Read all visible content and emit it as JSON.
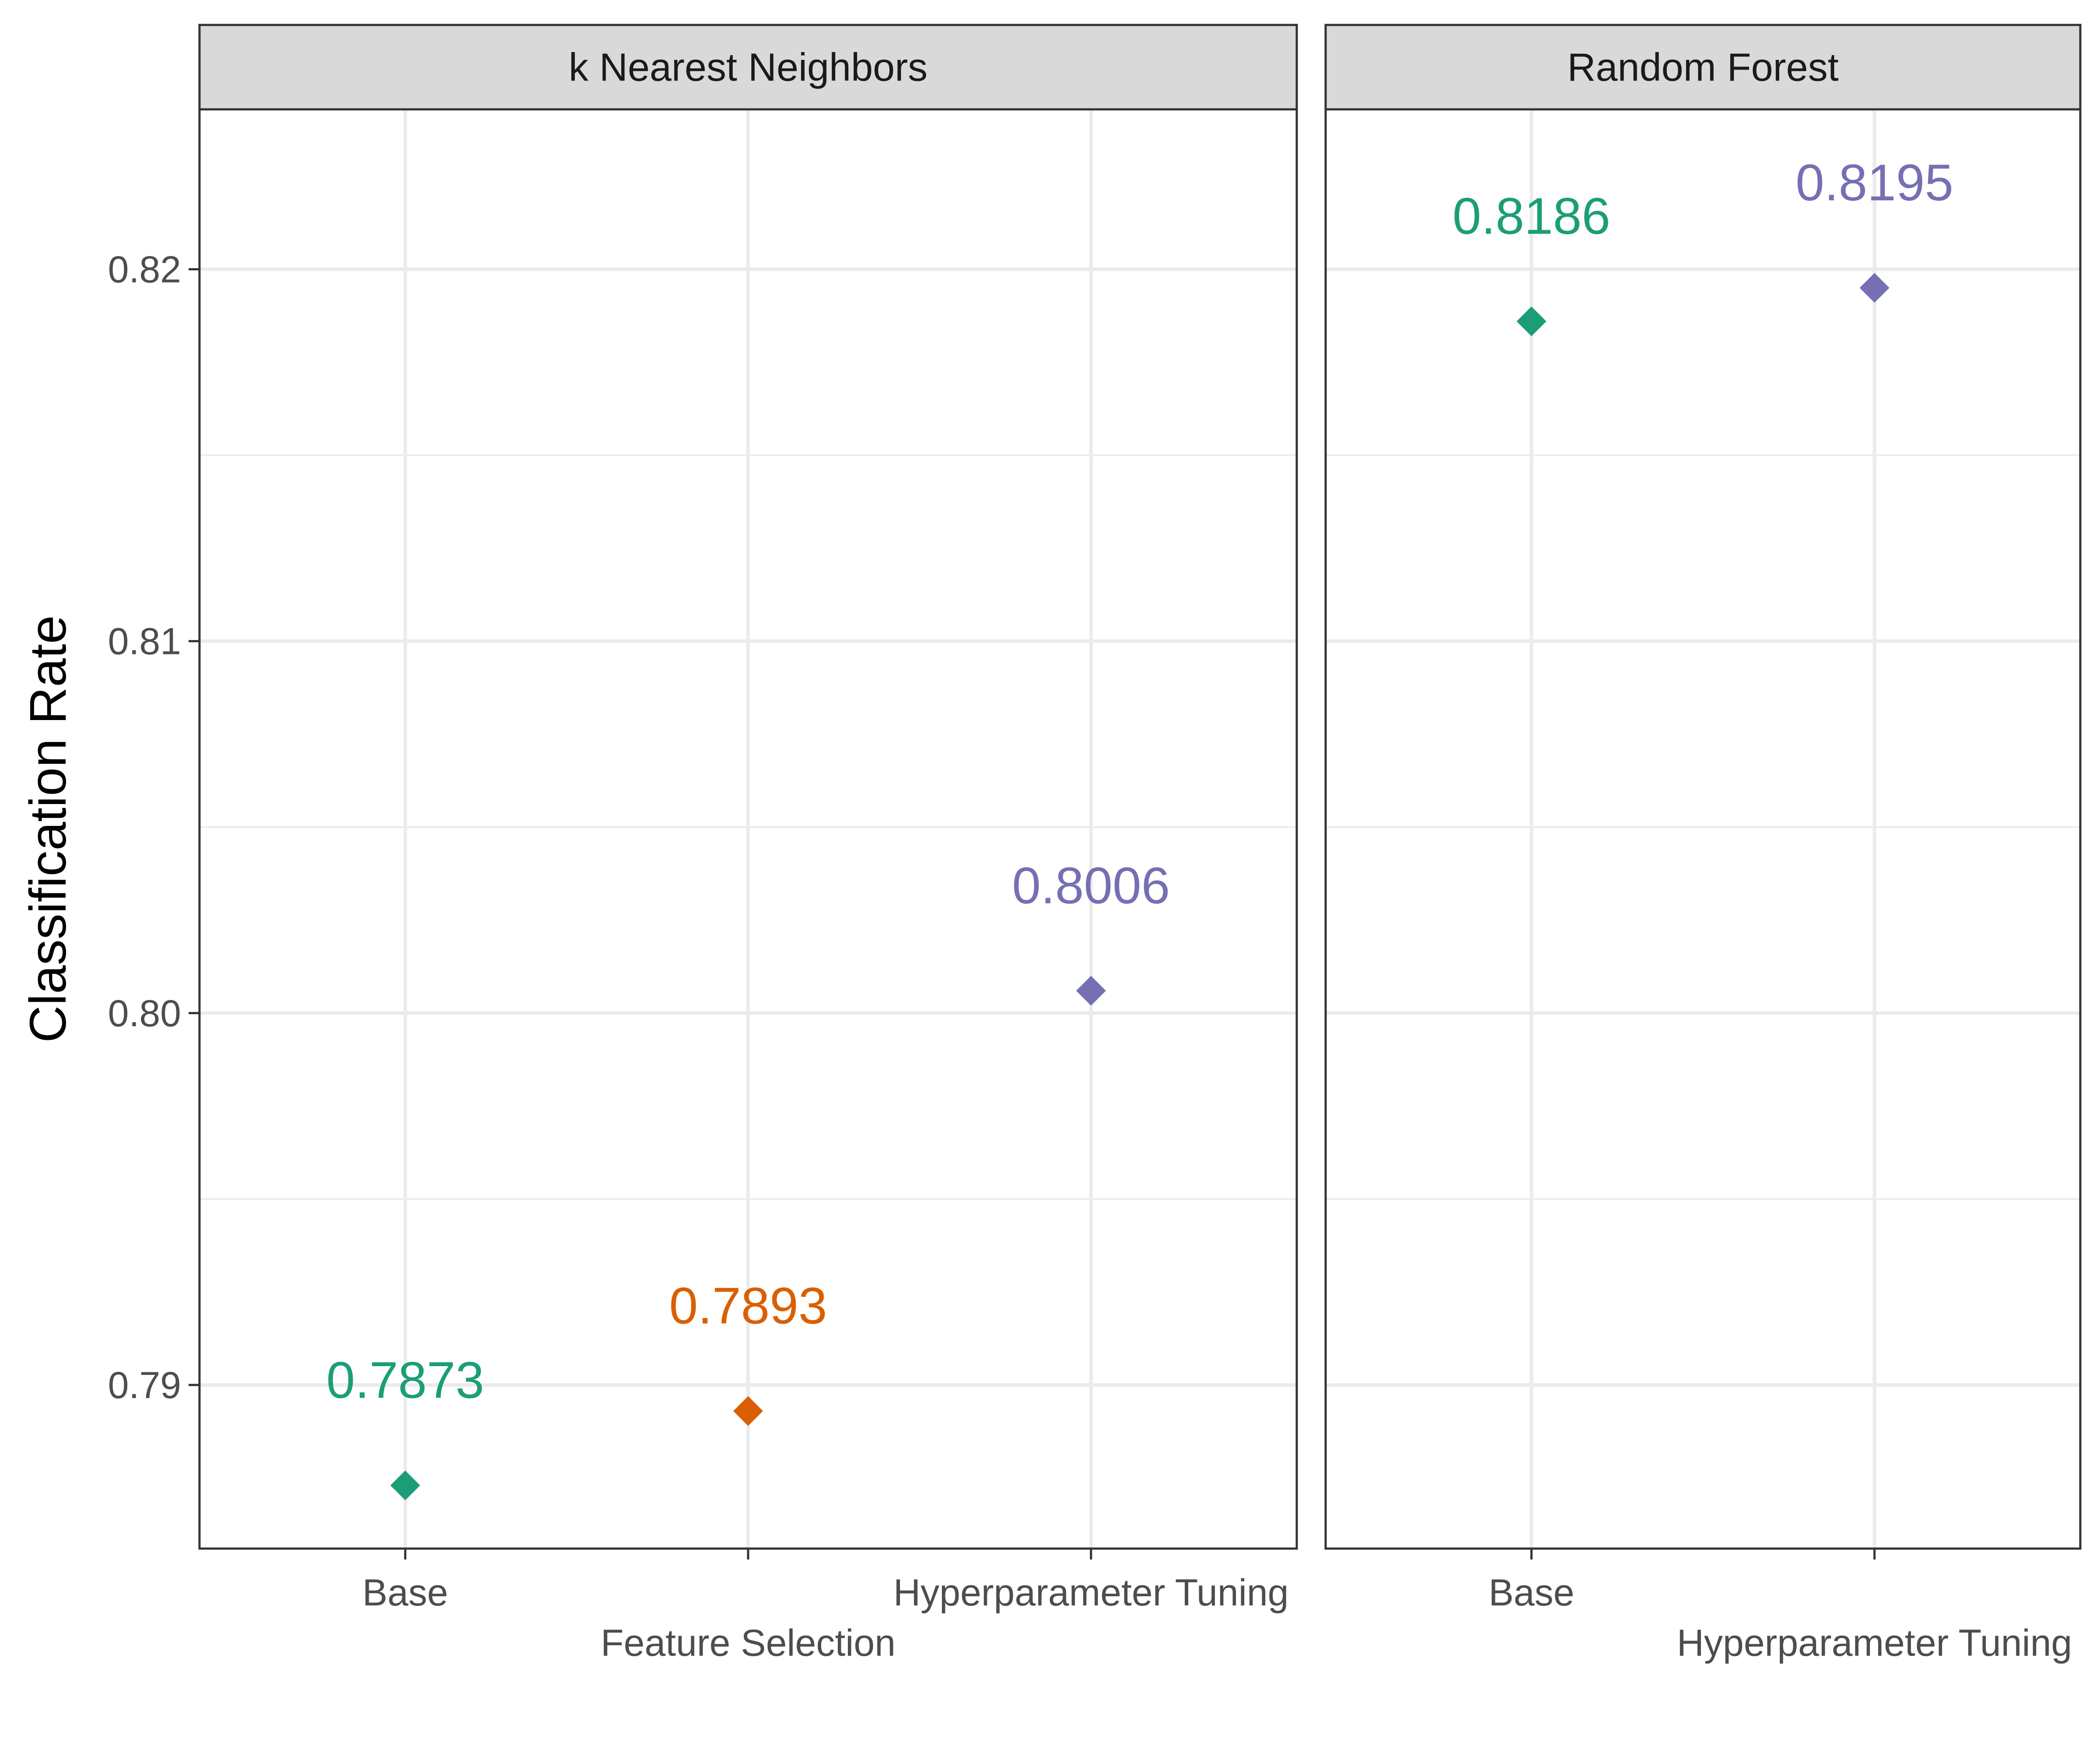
{
  "chart_data": {
    "type": "scatter",
    "facets": [
      {
        "title": "k Nearest Neighbors",
        "categories": [
          "Base",
          "Feature Selection",
          "Hyperparameter Tuning"
        ],
        "points": [
          {
            "category": "Base",
            "value": 0.7873,
            "label": "0.7873",
            "color": "#1b9e77"
          },
          {
            "category": "Feature Selection",
            "value": 0.7893,
            "label": "0.7893",
            "color": "#d95f02"
          },
          {
            "category": "Hyperparameter Tuning",
            "value": 0.8006,
            "label": "0.8006",
            "color": "#7570b3"
          }
        ]
      },
      {
        "title": "Random Forest",
        "categories": [
          "Base",
          "Hyperparameter Tuning"
        ],
        "points": [
          {
            "category": "Base",
            "value": 0.8186,
            "label": "0.8186",
            "color": "#1b9e77"
          },
          {
            "category": "Hyperparameter Tuning",
            "value": 0.8195,
            "label": "0.8195",
            "color": "#7570b3"
          }
        ]
      }
    ],
    "ylabel": "Classification Rate",
    "xlabel": "",
    "ylim": [
      0.7856,
      0.8243
    ],
    "yticks": [
      0.79,
      0.8,
      0.81,
      0.82
    ],
    "ytick_labels": [
      "0.79",
      "0.80",
      "0.81",
      "0.82"
    ],
    "grid": true,
    "marker": "diamond",
    "legend": "none"
  }
}
